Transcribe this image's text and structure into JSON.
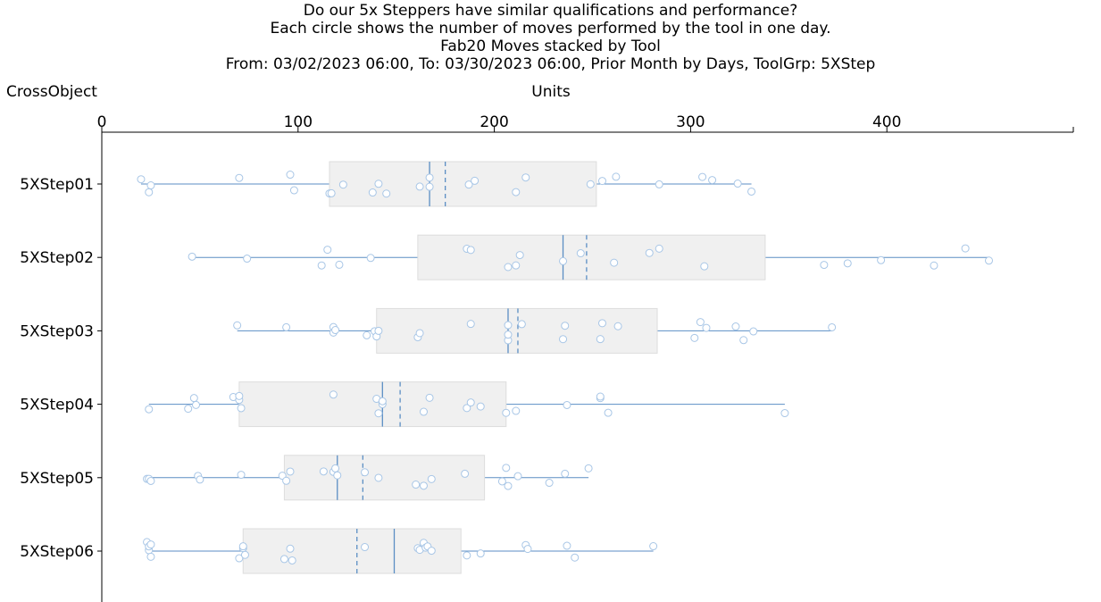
{
  "header": {
    "title": "Do our 5x Steppers have similar qualifications and performance?",
    "subtitle": "Each circle shows the number of moves performed by the tool in one day.",
    "line3": "Fab20 Moves stacked by Tool",
    "line4": "From: 03/02/2023 06:00, To: 03/30/2023 06:00, Prior Month by Days, ToolGrp: 5XStep"
  },
  "chart_data": {
    "type": "box-plot",
    "orientation": "horizontal",
    "ylabel": "CrossObject",
    "xlabel": "Units",
    "xlim": [
      0,
      495
    ],
    "x_ticks": [
      0,
      100,
      200,
      300,
      400
    ],
    "colors": {
      "line": "#5b8ec4",
      "box": "#f0f0f0",
      "box_edge": "#dddddd",
      "point": "#a8c6e6"
    },
    "categories": [
      "5XStep01",
      "5XStep02",
      "5XStep03",
      "5XStep04",
      "5XStep05",
      "5XStep06"
    ],
    "boxes": [
      {
        "tool": "5XStep01",
        "whisker_low": 20,
        "q1": 116,
        "median": 167,
        "mean": 175,
        "q3": 252,
        "whisker_high": 331,
        "points": [
          20,
          24,
          25,
          70,
          96,
          98,
          116,
          117,
          123,
          138,
          141,
          145,
          162,
          167,
          167,
          187,
          190,
          211,
          216,
          249,
          255,
          262,
          284,
          306,
          311,
          324,
          331
        ]
      },
      {
        "tool": "5XStep02",
        "whisker_low": 46,
        "q1": 161,
        "median": 235,
        "mean": 247,
        "q3": 338,
        "whisker_high": 452,
        "points": [
          46,
          74,
          112,
          115,
          121,
          137,
          186,
          188,
          207,
          211,
          213,
          235,
          244,
          261,
          279,
          284,
          307,
          368,
          380,
          397,
          424,
          440,
          452
        ]
      },
      {
        "tool": "5XStep03",
        "whisker_low": 69,
        "q1": 140,
        "median": 207,
        "mean": 212,
        "q3": 283,
        "whisker_high": 372,
        "points": [
          69,
          94,
          118,
          118,
          119,
          135,
          139,
          140,
          141,
          161,
          162,
          188,
          207,
          207,
          207,
          214,
          235,
          236,
          254,
          255,
          263,
          302,
          305,
          308,
          323,
          327,
          332,
          372
        ]
      },
      {
        "tool": "5XStep04",
        "whisker_low": 24,
        "q1": 70,
        "median": 143,
        "mean": 152,
        "q3": 206,
        "whisker_high": 348,
        "points": [
          24,
          44,
          47,
          48,
          67,
          70,
          70,
          71,
          118,
          140,
          141,
          143,
          143,
          164,
          167,
          186,
          188,
          193,
          206,
          211,
          237,
          254,
          254,
          258,
          348
        ]
      },
      {
        "tool": "5XStep05",
        "whisker_low": 23,
        "q1": 93,
        "median": 120,
        "mean": 133,
        "q3": 195,
        "whisker_high": 248,
        "points": [
          23,
          24,
          25,
          49,
          50,
          71,
          92,
          94,
          96,
          113,
          118,
          119,
          120,
          134,
          141,
          160,
          164,
          168,
          185,
          204,
          206,
          207,
          212,
          228,
          236,
          248
        ]
      },
      {
        "tool": "5XStep06",
        "whisker_low": 23,
        "q1": 72,
        "median": 149,
        "mean": 130,
        "q3": 183,
        "whisker_high": 281,
        "points": [
          23,
          24,
          24,
          25,
          25,
          70,
          72,
          72,
          73,
          93,
          96,
          97,
          134,
          161,
          162,
          164,
          165,
          166,
          168,
          186,
          193,
          216,
          217,
          237,
          241,
          281
        ]
      }
    ]
  }
}
